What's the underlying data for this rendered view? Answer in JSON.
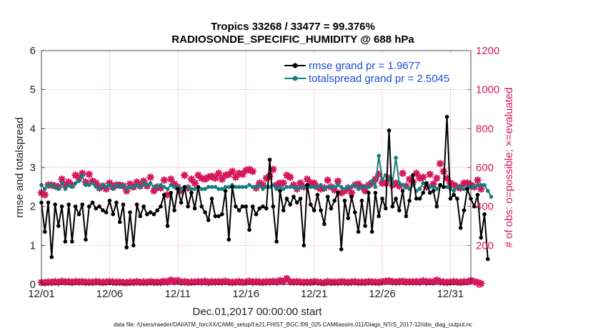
{
  "chart_data": {
    "type": "line",
    "title_line1": "Tropics 33268 / 33477 = 99.376%",
    "title_line2": "RADIOSONDE_SPECIFIC_HUMIDITY @ 688 hPa",
    "xlabel": "Dec.01,2017 00:00:00 start",
    "ylabel_left": "rmse and totalspread",
    "ylabel_right": "# of obs: o=possible; ×=evaluated",
    "xlim": [
      0,
      31.5
    ],
    "ylim_left": [
      0,
      6
    ],
    "ylim_right": [
      0,
      1200
    ],
    "x_ticks": [
      {
        "x": 0,
        "label": "12/01"
      },
      {
        "x": 5,
        "label": "12/06"
      },
      {
        "x": 10,
        "label": "12/11"
      },
      {
        "x": 15,
        "label": "12/16"
      },
      {
        "x": 20,
        "label": "12/21"
      },
      {
        "x": 25,
        "label": "12/26"
      },
      {
        "x": 30,
        "label": "12/31"
      }
    ],
    "y_ticks_left": [
      "0",
      "1",
      "2",
      "3",
      "4",
      "5",
      "6"
    ],
    "y_ticks_right": [
      "0",
      "200",
      "400",
      "600",
      "800",
      "1000",
      "1200"
    ],
    "legend": {
      "position": "top-right",
      "entries": [
        "rmse grand pr = 1.9677",
        "totalspread grand pr = 2.5045"
      ]
    },
    "series": [
      {
        "name": "rmse",
        "color": "#000000",
        "axis": "left",
        "values": [
          2.1,
          1.35,
          2.1,
          0.7,
          2.05,
          1.5,
          2.0,
          1.1,
          2.05,
          1.1,
          2.0,
          1.8,
          2.05,
          1.15,
          2.0,
          2.1,
          1.95,
          2.0,
          1.9,
          1.85,
          2.15,
          1.8,
          2.1,
          1.6,
          2.05,
          0.95,
          1.85,
          1.0,
          2.05,
          1.75,
          2.0,
          1.8,
          1.85,
          1.8,
          1.9,
          2.0,
          2.3,
          1.5,
          2.35,
          1.9,
          2.45,
          2.1,
          2.5,
          2.0,
          2.35,
          1.95,
          2.5,
          2.0,
          1.85,
          1.65,
          2.2,
          1.75,
          1.75,
          1.8,
          2.4,
          1.15,
          2.5,
          2.0,
          1.9,
          2.0,
          2.0,
          1.4,
          2.0,
          1.8,
          1.95,
          2.0,
          1.95,
          3.2,
          2.0,
          1.1,
          2.4,
          1.9,
          2.2,
          2.05,
          2.25,
          2.1,
          2.2,
          1.0,
          2.55,
          2.05,
          1.9,
          2.3,
          1.9,
          1.55,
          2.25,
          1.95,
          2.15,
          2.35,
          0.9,
          2.15,
          1.7,
          2.25,
          1.85,
          1.35,
          2.15,
          1.5,
          2.35,
          1.35,
          2.35,
          1.75,
          2.2,
          1.95,
          3.95,
          2.0,
          2.2,
          1.9,
          2.4,
          1.75,
          2.15,
          2.8,
          2.2,
          2.2,
          2.35,
          2.6,
          2.35,
          2.4,
          2.0,
          2.55,
          2.5,
          4.3,
          2.2,
          2.3,
          2.2,
          1.45,
          1.9,
          2.45,
          2.2,
          2.0,
          2.3,
          1.2,
          1.8,
          0.65
        ],
        "markers": "filled circles"
      },
      {
        "name": "totalspread",
        "color": "#13807d",
        "axis": "left",
        "values": [
          2.55,
          2.45,
          2.55,
          2.55,
          2.5,
          2.45,
          2.6,
          2.45,
          2.55,
          2.5,
          2.6,
          2.65,
          2.8,
          2.55,
          2.55,
          2.6,
          2.5,
          2.45,
          2.55,
          2.5,
          2.55,
          2.45,
          2.55,
          2.5,
          2.55,
          2.45,
          2.5,
          2.5,
          2.55,
          2.5,
          2.6,
          2.55,
          2.6,
          2.5,
          2.5,
          2.55,
          2.5,
          2.45,
          2.55,
          2.5,
          2.5,
          2.45,
          2.45,
          2.5,
          2.45,
          2.45,
          2.5,
          2.45,
          2.45,
          2.5,
          2.5,
          2.5,
          2.45,
          2.45,
          2.5,
          2.5,
          2.55,
          2.5,
          2.5,
          2.5,
          2.5,
          2.55,
          2.5,
          2.5,
          2.55,
          2.45,
          2.5,
          2.5,
          2.55,
          2.45,
          2.5,
          2.45,
          2.5,
          2.5,
          2.5,
          2.45,
          2.5,
          2.5,
          2.5,
          2.5,
          2.5,
          2.5,
          2.55,
          2.45,
          2.5,
          2.5,
          2.5,
          2.55,
          2.5,
          2.45,
          2.5,
          2.5,
          2.55,
          2.45,
          2.5,
          2.5,
          2.5,
          2.65,
          2.5,
          3.3,
          2.7,
          2.8,
          2.7,
          2.6,
          3.25,
          2.6,
          2.55,
          2.5,
          2.45,
          2.55,
          2.4,
          2.45,
          2.6,
          2.55,
          2.5,
          2.5,
          2.45,
          2.55,
          2.5,
          2.5,
          2.45,
          2.4,
          2.5,
          2.5,
          2.45,
          2.5,
          2.5,
          2.5,
          2.55,
          2.55,
          2.55,
          2.4,
          2.25
        ],
        "markers": "filled circles"
      },
      {
        "name": "possible",
        "color": "#d6175c",
        "axis": "right",
        "values": [
          470,
          460,
          510,
          510,
          505,
          500,
          540,
          510,
          525,
          510,
          560,
          545,
          570,
          525,
          565,
          530,
          520,
          495,
          505,
          490,
          520,
          500,
          510,
          510,
          505,
          480,
          515,
          500,
          525,
          505,
          530,
          505,
          550,
          480,
          500,
          495,
          535,
          460,
          540,
          515,
          500,
          480,
          560,
          495,
          540,
          520,
          560,
          545,
          540,
          550,
          555,
          545,
          570,
          540,
          560,
          565,
          580,
          550,
          570,
          565,
          585,
          590,
          580,
          495,
          520,
          510,
          545,
          555,
          590,
          510,
          520,
          520,
          560,
          550,
          510,
          490,
          520,
          500,
          540,
          520,
          520,
          500,
          490,
          495,
          535,
          500,
          485,
          530,
          470,
          480,
          495,
          470,
          510,
          515,
          500,
          480,
          510,
          520,
          540,
          565,
          520,
          520,
          545,
          510,
          520,
          505,
          570,
          505,
          540,
          525,
          570,
          545,
          550,
          500,
          565,
          515,
          545,
          620,
          580,
          545,
          520,
          510,
          500,
          495,
          520,
          520,
          510,
          500,
          535,
          490
        ],
        "markers": "asterisks"
      },
      {
        "name": "evaluated",
        "color": "#d6175c",
        "axis": "right",
        "values": [
          10,
          8,
          12,
          10,
          14,
          10,
          16,
          12,
          14,
          10,
          15,
          12,
          14,
          10,
          12,
          10,
          14,
          12,
          10,
          12,
          14,
          12,
          10,
          12,
          10,
          8,
          12,
          10,
          14,
          10,
          12,
          10,
          14,
          10,
          12,
          10,
          16,
          12,
          22,
          14,
          20,
          12,
          14,
          10,
          12,
          12,
          14,
          12,
          16,
          10,
          14,
          12,
          14,
          12,
          16,
          12,
          10,
          12,
          14,
          10,
          12,
          16,
          12,
          14,
          12,
          10,
          14,
          12,
          16,
          12,
          20,
          14,
          30,
          14,
          12,
          14,
          12,
          10,
          12,
          10,
          14,
          12,
          10,
          8,
          14,
          10,
          12,
          10,
          14,
          12,
          10,
          12,
          14,
          10,
          12,
          10,
          14,
          12,
          12,
          10,
          14,
          16,
          18,
          14,
          12,
          14,
          16,
          12,
          14,
          12,
          14,
          12,
          18,
          12,
          14,
          12,
          22,
          14,
          12,
          10,
          12,
          14,
          12,
          10,
          14,
          12,
          20,
          14,
          10,
          4
        ],
        "markers": "asterisks"
      }
    ]
  },
  "footer": "data file: /Users/raeder/DAI/ATM_forcXX/CAM6_setup/f.e21.FHIST_BGC.f09_025.CAM6assim.011/Diags_NTrS_2017-12/obs_diag_output.nc"
}
